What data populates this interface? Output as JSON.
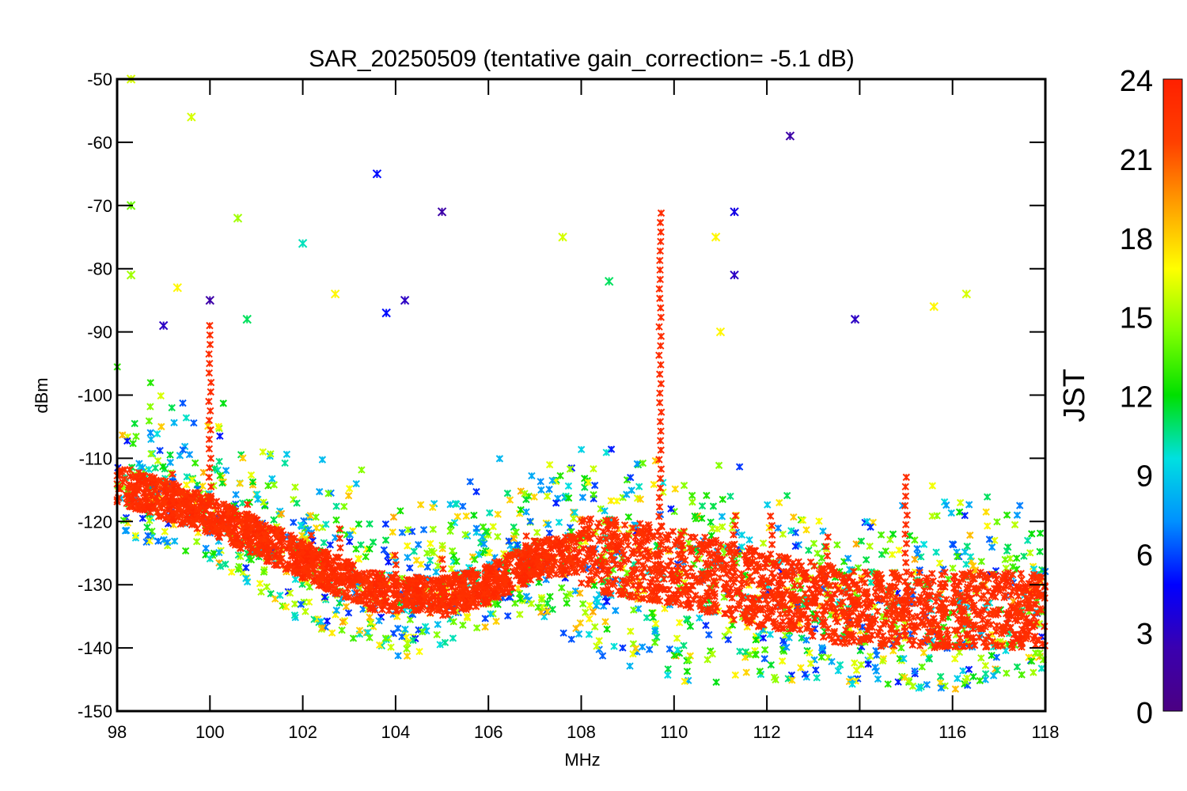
{
  "chart_data": {
    "type": "scatter",
    "title": "SAR_20250509 (tentative gain_correction= -5.1 dB)",
    "xlabel": "MHz",
    "ylabel": "dBm",
    "xlim": [
      98,
      118
    ],
    "ylim": [
      -150,
      -50
    ],
    "xticks": [
      "98",
      "100",
      "102",
      "104",
      "106",
      "108",
      "110",
      "112",
      "114",
      "116",
      "118"
    ],
    "yticks": [
      "-50",
      "-60",
      "-70",
      "-80",
      "-90",
      "-100",
      "-110",
      "-120",
      "-130",
      "-140",
      "-150"
    ],
    "grid": false,
    "marker": "asterisk",
    "colorbar": {
      "label": "JST",
      "range": [
        0,
        24
      ],
      "ticks": [
        "24",
        "21",
        "18",
        "15",
        "12",
        "9",
        "6",
        "3",
        "0"
      ],
      "colors": [
        "#4b0082",
        "#3a00b0",
        "#0000ff",
        "#0090ff",
        "#00e0e0",
        "#00e000",
        "#80ff00",
        "#ffff00",
        "#ffa000",
        "#ff4000",
        "#ff2000"
      ]
    },
    "series": [
      {
        "description": "late-hour (~23 JST) dense noise floor band",
        "jst": 23,
        "floor_curve": {
          "x": [
            98,
            100,
            102,
            103.5,
            105,
            106,
            107,
            108,
            110,
            112,
            114,
            116,
            118
          ],
          "y": [
            -114,
            -119,
            -126,
            -131,
            -132,
            -130,
            -126,
            -125,
            -127,
            -131,
            -134,
            -134,
            -134
          ]
        },
        "spikes": [
          {
            "x": 98.6,
            "y": -113
          },
          {
            "x": 99.2,
            "y": -112
          },
          {
            "x": 100.0,
            "y": -89
          },
          {
            "x": 100.8,
            "y": -117
          },
          {
            "x": 102.2,
            "y": -121
          },
          {
            "x": 102.8,
            "y": -121
          },
          {
            "x": 104.0,
            "y": -124
          },
          {
            "x": 105.0,
            "y": -125
          },
          {
            "x": 106.8,
            "y": -121
          },
          {
            "x": 109.7,
            "y": -71
          },
          {
            "x": 111.3,
            "y": -118
          },
          {
            "x": 112.1,
            "y": -118
          },
          {
            "x": 113.3,
            "y": -121
          },
          {
            "x": 115.0,
            "y": -112
          }
        ]
      },
      {
        "description": "daytime (~9-17 JST) scattered broadcast peaks",
        "points": [
          {
            "x": 98.3,
            "y": -50,
            "jst": 16
          },
          {
            "x": 98.3,
            "y": -70,
            "jst": 14
          },
          {
            "x": 98.3,
            "y": -81,
            "jst": 15
          },
          {
            "x": 99.6,
            "y": -56,
            "jst": 16
          },
          {
            "x": 99.3,
            "y": -83,
            "jst": 17
          },
          {
            "x": 100.6,
            "y": -72,
            "jst": 15
          },
          {
            "x": 100.8,
            "y": -88,
            "jst": 11
          },
          {
            "x": 102.0,
            "y": -76,
            "jst": 10
          },
          {
            "x": 102.7,
            "y": -84,
            "jst": 17
          },
          {
            "x": 107.6,
            "y": -75,
            "jst": 16
          },
          {
            "x": 108.6,
            "y": -82,
            "jst": 11
          },
          {
            "x": 110.9,
            "y": -75,
            "jst": 17
          },
          {
            "x": 111.0,
            "y": -90,
            "jst": 17
          },
          {
            "x": 115.6,
            "y": -86,
            "jst": 17
          },
          {
            "x": 116.3,
            "y": -84,
            "jst": 16
          }
        ]
      },
      {
        "description": "night (~0-5 JST) scattered peaks",
        "points": [
          {
            "x": 103.6,
            "y": -65,
            "jst": 5
          },
          {
            "x": 105.0,
            "y": -71,
            "jst": 2
          },
          {
            "x": 104.2,
            "y": -85,
            "jst": 3
          },
          {
            "x": 103.8,
            "y": -87,
            "jst": 5
          },
          {
            "x": 112.5,
            "y": -59,
            "jst": 2
          },
          {
            "x": 111.3,
            "y": -71,
            "jst": 4
          },
          {
            "x": 111.3,
            "y": -81,
            "jst": 3
          },
          {
            "x": 113.9,
            "y": -88,
            "jst": 3
          },
          {
            "x": 100.0,
            "y": -85,
            "jst": 2
          },
          {
            "x": 99.0,
            "y": -89,
            "jst": 3
          }
        ]
      },
      {
        "description": "early-morning (~6-8 JST) lower envelope",
        "lower_curve": {
          "x": [
            98,
            100,
            102,
            104,
            106,
            107,
            108,
            110,
            112,
            114,
            116,
            118
          ],
          "y": [
            -122,
            -126,
            -136,
            -142,
            -137,
            -134,
            -140,
            -146,
            -145,
            -146,
            -147,
            -144
          ]
        }
      }
    ]
  }
}
